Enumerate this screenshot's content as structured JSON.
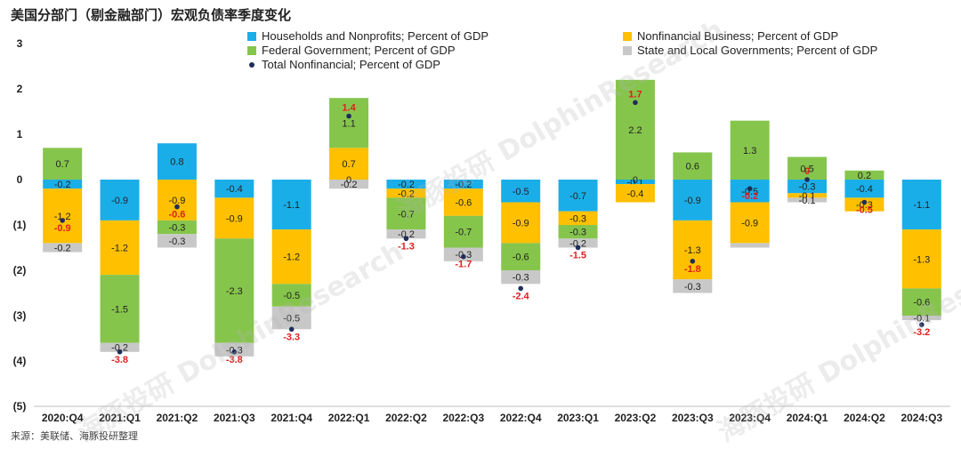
{
  "title": "美国分部门（剔金融部门）宏观负债率季度变化",
  "source": "来源：美联储、海豚投研整理",
  "watermark": "DolphinResearch",
  "watermark_cn": "海豚投研",
  "colors": {
    "households": "#1aaee8",
    "business": "#ffc000",
    "federal": "#86c54c",
    "state": "#c8c8c8",
    "total": "#1f2d5a",
    "total_label": "#e0201e"
  },
  "chart_data": {
    "type": "bar",
    "stacked": true,
    "title": "美国分部门（剔金融部门）宏观负债率季度变化",
    "ylim": [
      -5,
      3
    ],
    "yticks": [
      3,
      2,
      1,
      0,
      -1,
      -2,
      -3,
      -4,
      -5
    ],
    "ytick_labels": [
      "3",
      "2",
      "1",
      "0",
      "(1)",
      "(2)",
      "(3)",
      "(4)",
      "(5)"
    ],
    "categories": [
      "2020:Q4",
      "2021:Q1",
      "2021:Q2",
      "2021:Q3",
      "2021:Q4",
      "2022:Q1",
      "2022:Q2",
      "2022:Q3",
      "2022:Q4",
      "2023:Q1",
      "2023:Q2",
      "2023:Q3",
      "2023:Q4",
      "2024:Q1",
      "2024:Q2",
      "2024:Q3"
    ],
    "series": [
      {
        "name": "Households and Nonprofits; Percent of GDP",
        "key": "households",
        "values": [
          -0.2,
          -0.9,
          0.8,
          -0.4,
          -1.1,
          0,
          -0.2,
          -0.2,
          -0.5,
          -0.7,
          -0.1,
          -0.9,
          -0.5,
          -0.3,
          -0.4,
          -1.1
        ]
      },
      {
        "name": "Nonfinancial Business; Percent of GDP",
        "key": "business",
        "values": [
          -1.2,
          -1.2,
          -0.9,
          -0.9,
          -1.2,
          0.7,
          -0.2,
          -0.6,
          -0.9,
          -0.3,
          -0.4,
          -1.3,
          -0.9,
          -0.1,
          -0.3,
          -1.3
        ]
      },
      {
        "name": "Federal Government; Percent of GDP",
        "key": "federal",
        "values": [
          0.7,
          -1.5,
          -0.3,
          -2.3,
          -0.5,
          1.1,
          -0.7,
          -0.7,
          -0.6,
          -0.3,
          2.2,
          0.6,
          1.3,
          0.5,
          0.2,
          -0.6
        ]
      },
      {
        "name": "State and Local Governments; Percent of GDP",
        "key": "state",
        "values": [
          -0.2,
          -0.2,
          -0.3,
          -0.3,
          -0.5,
          -0.2,
          -0.2,
          -0.3,
          -0.3,
          -0.2,
          0,
          -0.3,
          -0.1,
          -0.1,
          0,
          -0.1
        ]
      }
    ],
    "total": {
      "name": "Total Nonfinancial; Percent of GDP",
      "values": [
        -0.9,
        -3.8,
        -0.6,
        -3.8,
        -3.3,
        1.4,
        -1.3,
        -1.7,
        -2.4,
        -1.5,
        1.7,
        -1.8,
        -0.2,
        0,
        -0.5,
        -3.2
      ],
      "labels": [
        "-0.9",
        "-3.8",
        "-0.6",
        "-3.8",
        "-3.3",
        "1.4",
        "-1.3",
        "-1.7",
        "-2.4",
        "-1.5",
        "1.7",
        "-1.8",
        "-0.2",
        "0",
        "-0.5",
        "-3.2"
      ]
    },
    "value_labels": {
      "households": [
        "-0.2",
        "-0.9",
        "0.8",
        "-0.4",
        "-1.1",
        "0",
        "-0.2",
        "-0.2",
        "-0.5",
        "-0.7",
        "-0.1",
        "-0.9",
        "-0.5",
        "-0.3",
        "-0.4",
        "-1.1"
      ],
      "business": [
        "-1.2",
        "-1.2",
        "-0.9",
        "-0.9",
        "-1.2",
        "0.7",
        "-0.2",
        "-0.6",
        "-0.9",
        "-0.3",
        "-0.4",
        "-1.3",
        "-0.9",
        "-0.1",
        "-0.3",
        "-1.3"
      ],
      "federal": [
        "0.7",
        "-1.5",
        "-0.3",
        "-2.3",
        "-0.5",
        "1.1",
        "-0.7",
        "-0.7",
        "-0.6",
        "-0.3",
        "2.2",
        "0.6",
        "1.3",
        "0.5",
        "0.2",
        "-0.6"
      ],
      "state": [
        "-0.2",
        "-0.2",
        "-0.3",
        "-0.3",
        "-0.5",
        "-0.2",
        "-0.2",
        "-0.3",
        "-0.3",
        "-0.2",
        "0",
        "-0.3",
        "",
        "-0.1",
        "",
        "-0.1"
      ]
    },
    "legend_position": "top",
    "grid": false
  }
}
